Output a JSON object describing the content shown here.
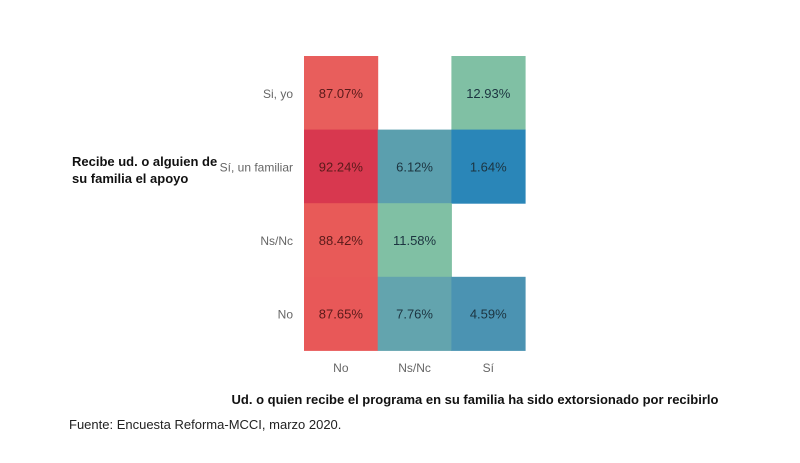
{
  "chart_data": {
    "type": "heatmap",
    "title": "",
    "xlabel": "Ud. o quien recibe el programa en su familia ha sido extorsionado por recibirlo",
    "ylabel": "Recibe ud. o alguien de su familia el apoyo",
    "x_categories": [
      "No",
      "Ns/Nc",
      "Sí"
    ],
    "y_categories": [
      "Si, yo",
      "Sí, un familiar",
      "Ns/Nc",
      "No"
    ],
    "values": [
      [
        87.07,
        null,
        12.93
      ],
      [
        92.24,
        6.12,
        1.64
      ],
      [
        88.42,
        11.58,
        null
      ],
      [
        87.65,
        7.76,
        4.59
      ]
    ],
    "value_labels": [
      [
        "87.07%",
        null,
        "12.93%"
      ],
      [
        "92.24%",
        "6.12%",
        "1.64%"
      ],
      [
        "88.42%",
        "11.58%",
        null
      ],
      [
        "87.65%",
        "7.76%",
        "4.59%"
      ]
    ],
    "colors": [
      [
        "#e85e5c",
        null,
        "#80c0a4"
      ],
      [
        "#d8384f",
        "#5b9fae",
        "#2a86b8"
      ],
      [
        "#e85a58",
        "#80c0a4",
        null
      ],
      [
        "#e85858",
        "#63a4ae",
        "#4b93b2"
      ]
    ],
    "grid": false,
    "legend": "none"
  },
  "labels": {
    "y_title": "Recibe ud. o alguien de su familia el apoyo",
    "y_title_display": "Recibe ud. o alguien de su familia el apoyo",
    "x_title": "Ud. o quien recibe el programa en su familia ha sido extorsionado por recibirlo",
    "source": "Fuente: Encuesta Reforma-MCCI, marzo 2020."
  }
}
